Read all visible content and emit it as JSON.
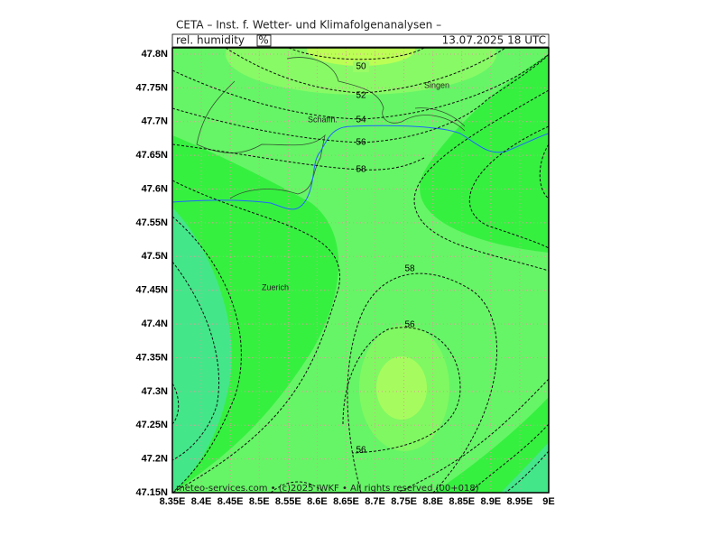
{
  "header": {
    "title": "CETA – Inst. f. Wetter- und Klimafolgenanalysen –",
    "variable": "rel. humidity",
    "unit": "%",
    "datetime": "13.07.2025  18 UTC"
  },
  "x_axis": {
    "labels": [
      "8.35E",
      "8.4E",
      "8.45E",
      "8.5E",
      "8.55E",
      "8.6E",
      "8.65E",
      "8.7E",
      "8.75E",
      "8.8E",
      "8.85E",
      "8.9E",
      "8.95E",
      "9E"
    ]
  },
  "y_axis": {
    "labels": [
      "47.8N",
      "47.75N",
      "47.7N",
      "47.65N",
      "47.6N",
      "47.55N",
      "47.5N",
      "47.45N",
      "47.4N",
      "47.35N",
      "47.3N",
      "47.25N",
      "47.2N",
      "47.15N"
    ]
  },
  "contour_labels": [
    "50",
    "52",
    "54",
    "56",
    "58",
    "58",
    "56",
    "56"
  ],
  "places": [
    "Singen",
    "Schaffh.",
    "Zuerich"
  ],
  "footer": "meteo-services.com • (c)2025 IWKF • All rights reserved (00+018)"
}
